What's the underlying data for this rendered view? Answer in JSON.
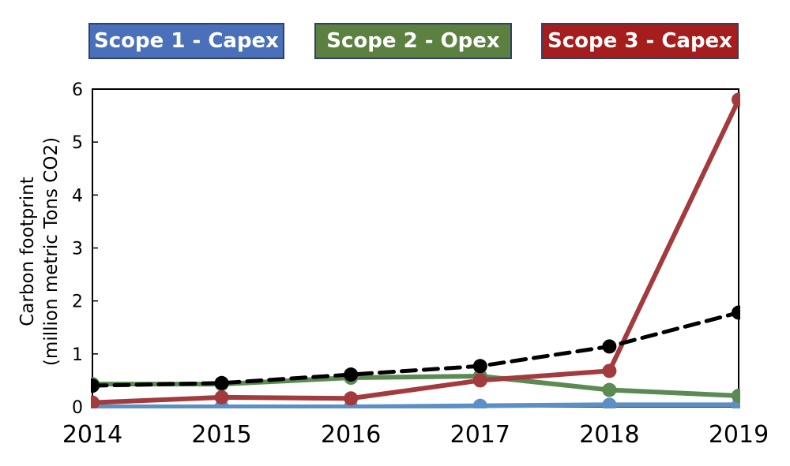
{
  "chart_data": {
    "type": "line",
    "categories": [
      "2014",
      "2015",
      "2016",
      "2017",
      "2018",
      "2019"
    ],
    "ylabel_lines": [
      "Carbon footprint",
      "(million metric Tons CO2)"
    ],
    "ylim": [
      0,
      6
    ],
    "yticks": [
      "0",
      "1",
      "2",
      "3",
      "4",
      "5",
      "6"
    ],
    "grid": false,
    "legend_position": "top",
    "legend": [
      {
        "label": "Scope 1 - Capex",
        "color": "#4a70b9"
      },
      {
        "label": "Scope 2 - Opex",
        "color": "#5b8040"
      },
      {
        "label": "Scope 3 - Capex",
        "color": "#a51d1d"
      }
    ],
    "series": [
      {
        "name": "Scope 1 - Capex",
        "color": "#5b8fc6",
        "style": "solid",
        "values": [
          0.0,
          0.0,
          0.0,
          0.02,
          0.04,
          0.04
        ]
      },
      {
        "name": "Scope 2 - Opex",
        "color": "#5b8a52",
        "style": "solid",
        "values": [
          0.43,
          0.43,
          0.55,
          0.58,
          0.32,
          0.21
        ]
      },
      {
        "name": "Scope 3 - Capex",
        "color": "#a33a3e",
        "style": "solid",
        "values": [
          0.08,
          0.18,
          0.16,
          0.5,
          0.68,
          5.8
        ]
      },
      {
        "color": "#000000",
        "style": "dashed",
        "values": [
          0.4,
          0.45,
          0.61,
          0.77,
          1.14,
          1.78
        ]
      }
    ]
  }
}
